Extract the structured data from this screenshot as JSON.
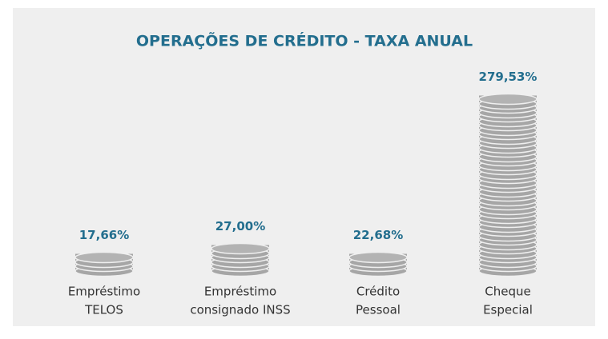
{
  "chart_data": {
    "type": "coin-stack",
    "title": "OPERAÇÕES DE CRÉDITO - TAXA ANUAL",
    "categories": [
      [
        "Empréstimo",
        "TELOS"
      ],
      [
        "Empréstimo",
        "consignado INSS"
      ],
      [
        "Crédito",
        "Pessoal"
      ],
      [
        "Cheque",
        "Especial"
      ]
    ],
    "values": [
      17.66,
      27.0,
      22.68,
      279.53
    ],
    "value_labels": [
      "17,66%",
      "27,00%",
      "22,68%",
      "279,53%"
    ],
    "color": "#a6a6a6"
  }
}
